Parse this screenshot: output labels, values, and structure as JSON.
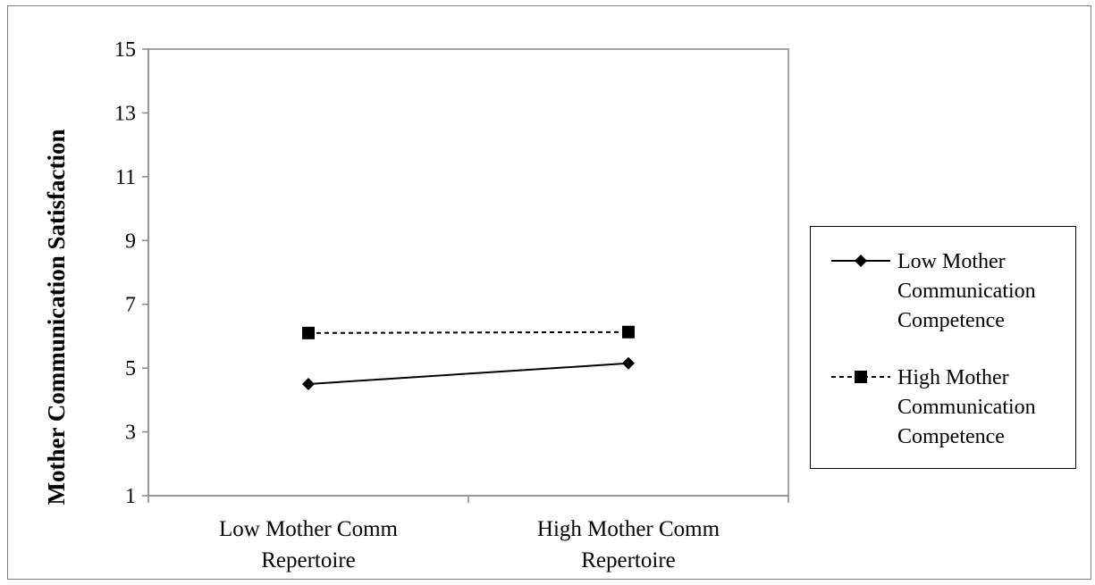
{
  "chart_data": {
    "type": "line",
    "title": "",
    "xlabel": "",
    "ylabel": "Mother Communication Satisfaction",
    "ylim": [
      1,
      15
    ],
    "yticks": [
      1,
      3,
      5,
      7,
      9,
      11,
      13,
      15
    ],
    "categories": [
      [
        "Low Mother Comm",
        "Repertoire"
      ],
      [
        "High Mother Comm",
        "Repertoire"
      ]
    ],
    "grid": false,
    "legend_position": "right",
    "series": [
      {
        "name_lines": [
          "Low Mother",
          "Communication",
          "Competence"
        ],
        "values": [
          4.5,
          5.15
        ],
        "marker": "diamond",
        "line_style": "solid",
        "color": "#000000"
      },
      {
        "name_lines": [
          "High Mother",
          "Communication",
          "Competence"
        ],
        "values": [
          6.1,
          6.13
        ],
        "marker": "square",
        "line_style": "dashed",
        "color": "#000000"
      }
    ]
  }
}
